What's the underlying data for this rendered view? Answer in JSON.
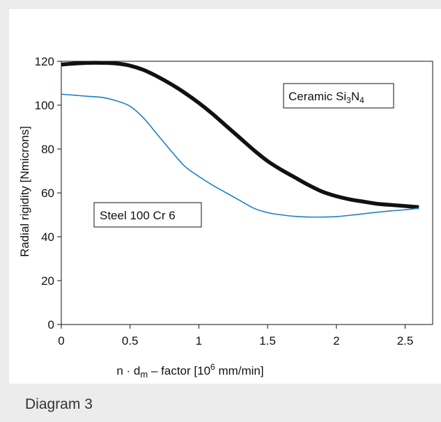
{
  "caption": "Diagram 3",
  "chart_data": {
    "type": "line",
    "title": "",
    "xlabel": {
      "prefix": "n · d",
      "sub": "m",
      "middle": " – factor [10",
      "sup": "6",
      "suffix": " mm/min]"
    },
    "ylabel": "Radial rigidity [Nmicrons]",
    "xlim": [
      0,
      2.7
    ],
    "ylim": [
      0,
      120
    ],
    "xticks": [
      0,
      0.5,
      1,
      1.5,
      2,
      2.5
    ],
    "xtick_labels": [
      "0",
      "0.5",
      "1",
      "1.5",
      "2",
      "2.5"
    ],
    "yticks": [
      0,
      20,
      40,
      60,
      80,
      100,
      120
    ],
    "ytick_labels": [
      "0",
      "20",
      "40",
      "60",
      "80",
      "100",
      "120"
    ],
    "grid": false,
    "series": [
      {
        "name": "Ceramic Si3N4",
        "label_parts": {
          "a": "Ceramic Si",
          "s1": "3",
          "b": "N",
          "s2": "4"
        },
        "color": "#111111",
        "stroke": "thick",
        "x": [
          0,
          0.1,
          0.2,
          0.3,
          0.4,
          0.5,
          0.6,
          0.7,
          0.8,
          0.9,
          1.0,
          1.1,
          1.2,
          1.3,
          1.4,
          1.5,
          1.6,
          1.7,
          1.8,
          1.9,
          2.0,
          2.1,
          2.2,
          2.3,
          2.4,
          2.5,
          2.6
        ],
        "y": [
          118.5,
          119,
          119.3,
          119.3,
          119,
          118,
          116,
          113,
          109.5,
          105.5,
          101,
          96,
          90.5,
          85,
          79.5,
          74.5,
          70.5,
          67,
          63.5,
          60.5,
          58.5,
          57,
          56,
          55,
          54.5,
          54,
          53.5
        ]
      },
      {
        "name": "Steel 100 Cr 6",
        "color": "#1a7fc8",
        "stroke": "thin",
        "x": [
          0,
          0.1,
          0.2,
          0.3,
          0.4,
          0.5,
          0.6,
          0.7,
          0.8,
          0.9,
          1.0,
          1.1,
          1.2,
          1.3,
          1.4,
          1.5,
          1.6,
          1.7,
          1.8,
          1.9,
          2.0,
          2.1,
          2.2,
          2.3,
          2.4,
          2.5,
          2.6
        ],
        "y": [
          105,
          104.5,
          104,
          103.5,
          102,
          99.5,
          94,
          86.5,
          79,
          72,
          67.5,
          63.5,
          60,
          56.5,
          53,
          51,
          50,
          49.3,
          49,
          49,
          49.2,
          49.8,
          50.5,
          51.2,
          51.8,
          52.3,
          53
        ]
      }
    ]
  }
}
